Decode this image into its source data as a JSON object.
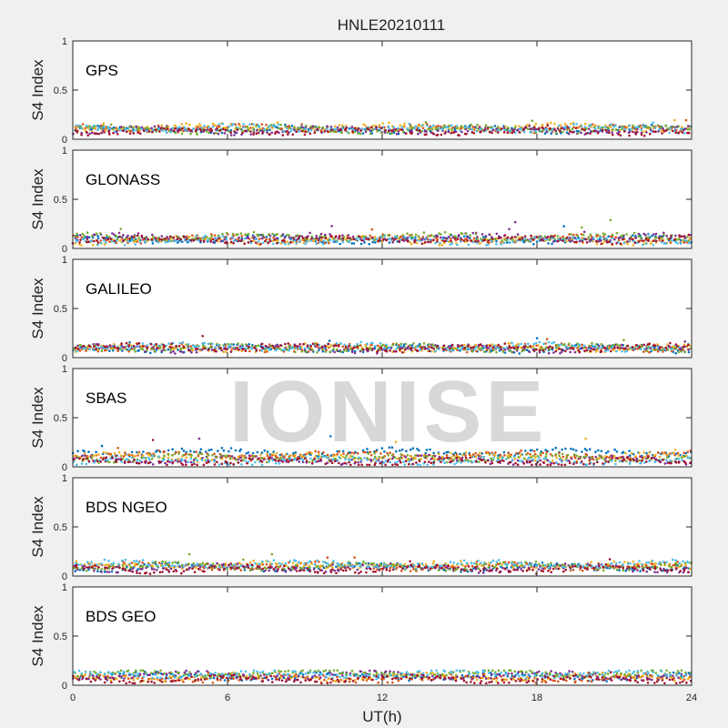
{
  "title": "HNLE20210111",
  "xlabel": "UT(h)",
  "ylabel": "S4 Index",
  "watermark": "IONISE",
  "palette": [
    "#0072BD",
    "#D95319",
    "#EDB120",
    "#7E2F8E",
    "#77AC30",
    "#4DBEEE",
    "#A2142F"
  ],
  "chart_data": [
    {
      "type": "scatter",
      "panel": "GPS",
      "xlabel": "",
      "ylabel": "S4 Index",
      "xlim": [
        0,
        24
      ],
      "ylim": [
        0,
        1
      ],
      "xticks": [
        0,
        6,
        12,
        18,
        24
      ],
      "yticks": [
        0,
        0.5,
        1
      ],
      "xtick_labels_shown": false,
      "series_baseline_s4": [
        0.1,
        0.11,
        0.12,
        0.09,
        0.1,
        0.11,
        0.08
      ],
      "typical_max_s4": 0.2
    },
    {
      "type": "scatter",
      "panel": "GLONASS",
      "xlabel": "",
      "ylabel": "S4 Index",
      "xlim": [
        0,
        24
      ],
      "ylim": [
        0,
        1
      ],
      "xticks": [
        0,
        6,
        12,
        18,
        24
      ],
      "yticks": [
        0,
        0.5,
        1
      ],
      "xtick_labels_shown": false,
      "series_baseline_s4": [
        0.09,
        0.1,
        0.08,
        0.11,
        0.12,
        0.08,
        0.09
      ],
      "typical_max_s4": 0.3
    },
    {
      "type": "scatter",
      "panel": "GALILEO",
      "xlabel": "",
      "ylabel": "S4 Index",
      "xlim": [
        0,
        24
      ],
      "ylim": [
        0,
        1
      ],
      "xticks": [
        0,
        6,
        12,
        18,
        24
      ],
      "yticks": [
        0,
        0.5,
        1
      ],
      "xtick_labels_shown": false,
      "series_baseline_s4": [
        0.09,
        0.1,
        0.1,
        0.09,
        0.1,
        0.11,
        0.1
      ],
      "typical_max_s4": 0.22
    },
    {
      "type": "scatter",
      "panel": "SBAS",
      "xlabel": "",
      "ylabel": "S4 Index",
      "xlim": [
        0,
        24
      ],
      "ylim": [
        0,
        1
      ],
      "xticks": [
        0,
        6,
        12,
        18,
        24
      ],
      "yticks": [
        0,
        0.5,
        1
      ],
      "xtick_labels_shown": false,
      "series_baseline_s4": [
        0.15,
        0.12,
        0.1,
        0.07,
        0.09,
        0.06,
        0.05
      ],
      "typical_max_s4": 0.35
    },
    {
      "type": "scatter",
      "panel": "BDS NGEO",
      "xlabel": "",
      "ylabel": "S4 Index",
      "xlim": [
        0,
        24
      ],
      "ylim": [
        0,
        1
      ],
      "xticks": [
        0,
        6,
        12,
        18,
        24
      ],
      "yticks": [
        0,
        0.5,
        1
      ],
      "xtick_labels_shown": false,
      "series_baseline_s4": [
        0.09,
        0.1,
        0.11,
        0.08,
        0.1,
        0.12,
        0.07
      ],
      "typical_max_s4": 0.23
    },
    {
      "type": "scatter",
      "panel": "BDS GEO",
      "xlabel": "UT(h)",
      "ylabel": "S4 Index",
      "xlim": [
        0,
        24
      ],
      "ylim": [
        0,
        1
      ],
      "xticks": [
        0,
        6,
        12,
        18,
        24
      ],
      "yticks": [
        0,
        0.5,
        1
      ],
      "xtick_labels_shown": true,
      "series_baseline_s4": [
        0.09,
        0.07,
        0.08,
        0.1,
        0.12,
        0.11,
        0.06
      ],
      "typical_max_s4": 0.15
    }
  ]
}
